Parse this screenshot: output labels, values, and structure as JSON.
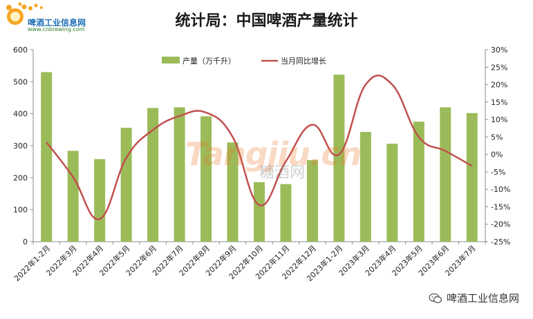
{
  "logo": {
    "text": "啤酒工业信息网",
    "url": "www.cnbrewing.com"
  },
  "watermark": {
    "text": "Tangjiu.cn",
    "sub": "糖酒网"
  },
  "footer": {
    "wechat_account": "啤酒工业信息网",
    "icon": "wechat-icon"
  },
  "colors": {
    "bar": "#9bbb59",
    "line": "#c0504d"
  },
  "chart_data": {
    "type": "bar",
    "title": "统计局：中国啤酒产量统计",
    "categories": [
      "2022年1-2月",
      "2022年3月",
      "2022年4月",
      "2022年5月",
      "2022年6月",
      "2022年7月",
      "2022年8月",
      "2022年9月",
      "2022年10月",
      "2022年11月",
      "2022年12月",
      "2023年1-2月",
      "2023年3月",
      "2023年4月",
      "2023年5月",
      "2023年6月",
      "2023年7月"
    ],
    "series": [
      {
        "name": "产量（万千升）",
        "type": "bar",
        "axis": "left",
        "values": [
          530,
          284,
          258,
          356,
          418,
          420,
          392,
          310,
          186,
          180,
          255,
          522,
          343,
          306,
          375,
          420,
          402
        ]
      },
      {
        "name": "当月同比增长",
        "type": "line",
        "axis": "right",
        "unit": "%",
        "values": [
          3.5,
          -6.5,
          -18.5,
          -1,
          7,
          11,
          12,
          5,
          -14.5,
          -2,
          8.5,
          0,
          20,
          20,
          5,
          1,
          -3.3
        ]
      }
    ],
    "y_left": {
      "min": 0,
      "max": 600,
      "ticks": [
        "0",
        "100",
        "200",
        "300",
        "400",
        "500",
        "600"
      ]
    },
    "y_right": {
      "min": -25,
      "max": 30,
      "ticks": [
        "-25%",
        "-20%",
        "-15%",
        "-10%",
        "-5%",
        "0%",
        "5%",
        "10%",
        "15%",
        "20%",
        "25%",
        "30%"
      ]
    },
    "legend_position": "top-center",
    "grid": false
  }
}
